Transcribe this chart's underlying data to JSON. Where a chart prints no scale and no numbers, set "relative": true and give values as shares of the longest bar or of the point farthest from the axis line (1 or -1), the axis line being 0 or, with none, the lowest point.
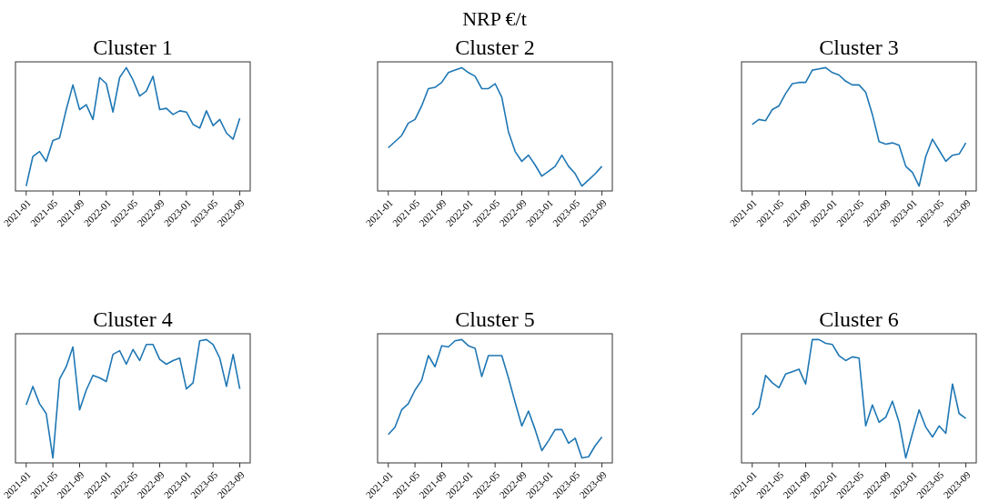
{
  "chart_data": [
    {
      "type": "other",
      "title": "NRP €/t"
    },
    {
      "type": "line",
      "title": "Cluster 1",
      "relative": true,
      "x": [
        "2021-01",
        "2021-02",
        "2021-03",
        "2021-04",
        "2021-05",
        "2021-06",
        "2021-07",
        "2021-08",
        "2021-09",
        "2021-10",
        "2021-11",
        "2021-12",
        "2022-01",
        "2022-02",
        "2022-03",
        "2022-04",
        "2022-05",
        "2022-06",
        "2022-07",
        "2022-08",
        "2022-09",
        "2022-10",
        "2022-11",
        "2022-12",
        "2023-01",
        "2023-02",
        "2023-03",
        "2023-04",
        "2023-05",
        "2023-06",
        "2023-07",
        "2023-08",
        "2023-09"
      ],
      "xlim": [
        "2020-11-13",
        "2023-10-18"
      ],
      "xticks": [
        "2021-01",
        "2021-05",
        "2021-09",
        "2022-01",
        "2022-05",
        "2022-09",
        "2023-01",
        "2023-05",
        "2023-09"
      ],
      "grid": false,
      "series": [
        {
          "color": "#1f77b4",
          "values": [
            0.04,
            0.28,
            0.32,
            0.24,
            0.41,
            0.43,
            0.66,
            0.86,
            0.66,
            0.7,
            0.58,
            0.92,
            0.87,
            0.64,
            0.92,
            1,
            0.9,
            0.77,
            0.81,
            0.93,
            0.66,
            0.67,
            0.62,
            0.65,
            0.64,
            0.54,
            0.51,
            0.65,
            0.53,
            0.58,
            0.47,
            0.42,
            0.59
          ]
        }
      ]
    },
    {
      "type": "line",
      "title": "Cluster 2",
      "relative": true,
      "x": [
        "2021-01",
        "2021-02",
        "2021-03",
        "2021-04",
        "2021-05",
        "2021-06",
        "2021-07",
        "2021-08",
        "2021-09",
        "2021-10",
        "2021-11",
        "2021-12",
        "2022-01",
        "2022-02",
        "2022-03",
        "2022-04",
        "2022-05",
        "2022-06",
        "2022-07",
        "2022-08",
        "2022-09",
        "2022-10",
        "2022-11",
        "2022-12",
        "2023-01",
        "2023-02",
        "2023-03",
        "2023-04",
        "2023-05",
        "2023-06",
        "2023-07",
        "2023-08",
        "2023-09"
      ],
      "xlim": [
        "2020-11-13",
        "2023-10-18"
      ],
      "xticks": [
        "2021-01",
        "2021-05",
        "2021-09",
        "2022-01",
        "2022-05",
        "2022-09",
        "2023-01",
        "2023-05",
        "2023-09"
      ],
      "grid": false,
      "series": [
        {
          "color": "#1f77b4",
          "values": [
            0.35,
            0.4,
            0.45,
            0.55,
            0.58,
            0.69,
            0.83,
            0.84,
            0.88,
            0.96,
            0.98,
            1,
            0.96,
            0.93,
            0.83,
            0.83,
            0.87,
            0.76,
            0.48,
            0.32,
            0.24,
            0.29,
            0.21,
            0.12,
            0.16,
            0.2,
            0.29,
            0.2,
            0.14,
            0.04,
            0.09,
            0.14,
            0.2
          ]
        }
      ]
    },
    {
      "type": "line",
      "title": "Cluster 3",
      "relative": true,
      "x": [
        "2021-01",
        "2021-02",
        "2021-03",
        "2021-04",
        "2021-05",
        "2021-06",
        "2021-07",
        "2021-08",
        "2021-09",
        "2021-10",
        "2021-11",
        "2021-12",
        "2022-01",
        "2022-02",
        "2022-03",
        "2022-04",
        "2022-05",
        "2022-06",
        "2022-07",
        "2022-08",
        "2022-09",
        "2022-10",
        "2022-11",
        "2022-12",
        "2023-01",
        "2023-02",
        "2023-03",
        "2023-04",
        "2023-05",
        "2023-06",
        "2023-07",
        "2023-08",
        "2023-09"
      ],
      "xlim": [
        "2020-11-13",
        "2023-10-18"
      ],
      "xticks": [
        "2021-01",
        "2021-05",
        "2021-09",
        "2022-01",
        "2022-05",
        "2022-09",
        "2023-01",
        "2023-05",
        "2023-09"
      ],
      "grid": false,
      "series": [
        {
          "color": "#1f77b4",
          "values": [
            0.54,
            0.58,
            0.57,
            0.66,
            0.69,
            0.79,
            0.87,
            0.88,
            0.88,
            0.98,
            0.99,
            1,
            0.96,
            0.94,
            0.89,
            0.86,
            0.86,
            0.8,
            0.62,
            0.4,
            0.38,
            0.39,
            0.37,
            0.2,
            0.15,
            0.04,
            0.28,
            0.42,
            0.33,
            0.24,
            0.29,
            0.3,
            0.39
          ]
        }
      ]
    },
    {
      "type": "line",
      "title": "Cluster 4",
      "relative": true,
      "x": [
        "2021-01",
        "2021-02",
        "2021-03",
        "2021-04",
        "2021-05",
        "2021-06",
        "2021-07",
        "2021-08",
        "2021-09",
        "2021-10",
        "2021-11",
        "2021-12",
        "2022-01",
        "2022-02",
        "2022-03",
        "2022-04",
        "2022-05",
        "2022-06",
        "2022-07",
        "2022-08",
        "2022-09",
        "2022-10",
        "2022-11",
        "2022-12",
        "2023-01",
        "2023-02",
        "2023-03",
        "2023-04",
        "2023-05",
        "2023-06",
        "2023-07",
        "2023-08",
        "2023-09"
      ],
      "xlim": [
        "2020-11-13",
        "2023-10-18"
      ],
      "xticks": [
        "2021-01",
        "2021-05",
        "2021-09",
        "2022-01",
        "2022-05",
        "2022-09",
        "2023-01",
        "2023-05",
        "2023-09"
      ],
      "grid": false,
      "series": [
        {
          "color": "#1f77b4",
          "values": [
            0.47,
            0.62,
            0.48,
            0.4,
            0.04,
            0.68,
            0.78,
            0.94,
            0.43,
            0.59,
            0.71,
            0.69,
            0.66,
            0.88,
            0.91,
            0.8,
            0.92,
            0.83,
            0.96,
            0.96,
            0.84,
            0.8,
            0.83,
            0.85,
            0.6,
            0.65,
            0.99,
            1,
            0.96,
            0.85,
            0.62,
            0.88,
            0.6
          ]
        }
      ]
    },
    {
      "type": "line",
      "title": "Cluster 5",
      "relative": true,
      "x": [
        "2021-01",
        "2021-02",
        "2021-03",
        "2021-04",
        "2021-05",
        "2021-06",
        "2021-07",
        "2021-08",
        "2021-09",
        "2021-10",
        "2021-11",
        "2021-12",
        "2022-01",
        "2022-02",
        "2022-03",
        "2022-04",
        "2022-05",
        "2022-06",
        "2022-07",
        "2022-08",
        "2022-09",
        "2022-10",
        "2022-11",
        "2022-12",
        "2023-01",
        "2023-02",
        "2023-03",
        "2023-04",
        "2023-05",
        "2023-06",
        "2023-07",
        "2023-08",
        "2023-09"
      ],
      "xlim": [
        "2020-11-13",
        "2023-10-18"
      ],
      "xticks": [
        "2021-01",
        "2021-05",
        "2021-09",
        "2022-01",
        "2022-05",
        "2022-09",
        "2023-01",
        "2023-05",
        "2023-09"
      ],
      "grid": false,
      "series": [
        {
          "color": "#1f77b4",
          "values": [
            0.23,
            0.29,
            0.43,
            0.48,
            0.59,
            0.67,
            0.87,
            0.78,
            0.95,
            0.94,
            0.99,
            1,
            0.95,
            0.93,
            0.7,
            0.87,
            0.87,
            0.87,
            0.69,
            0.49,
            0.3,
            0.42,
            0.27,
            0.1,
            0.18,
            0.27,
            0.27,
            0.16,
            0.2,
            0.04,
            0.05,
            0.14,
            0.21
          ]
        }
      ]
    },
    {
      "type": "line",
      "title": "Cluster 6",
      "relative": true,
      "x": [
        "2021-01",
        "2021-02",
        "2021-03",
        "2021-04",
        "2021-05",
        "2021-06",
        "2021-07",
        "2021-08",
        "2021-09",
        "2021-10",
        "2021-11",
        "2021-12",
        "2022-01",
        "2022-02",
        "2022-03",
        "2022-04",
        "2022-05",
        "2022-06",
        "2022-07",
        "2022-08",
        "2022-09",
        "2022-10",
        "2022-11",
        "2022-12",
        "2023-01",
        "2023-02",
        "2023-03",
        "2023-04",
        "2023-05",
        "2023-06",
        "2023-07",
        "2023-08",
        "2023-09"
      ],
      "xlim": [
        "2020-11-13",
        "2023-10-18"
      ],
      "xticks": [
        "2021-01",
        "2021-05",
        "2021-09",
        "2022-01",
        "2022-05",
        "2022-09",
        "2023-01",
        "2023-05",
        "2023-09"
      ],
      "grid": false,
      "series": [
        {
          "color": "#1f77b4",
          "values": [
            0.39,
            0.45,
            0.71,
            0.65,
            0.61,
            0.72,
            0.74,
            0.76,
            0.64,
            1,
            1,
            0.97,
            0.96,
            0.87,
            0.83,
            0.86,
            0.85,
            0.3,
            0.47,
            0.33,
            0.37,
            0.5,
            0.33,
            0.04,
            0.24,
            0.43,
            0.29,
            0.21,
            0.3,
            0.24,
            0.64,
            0.4,
            0.36
          ]
        }
      ]
    }
  ]
}
